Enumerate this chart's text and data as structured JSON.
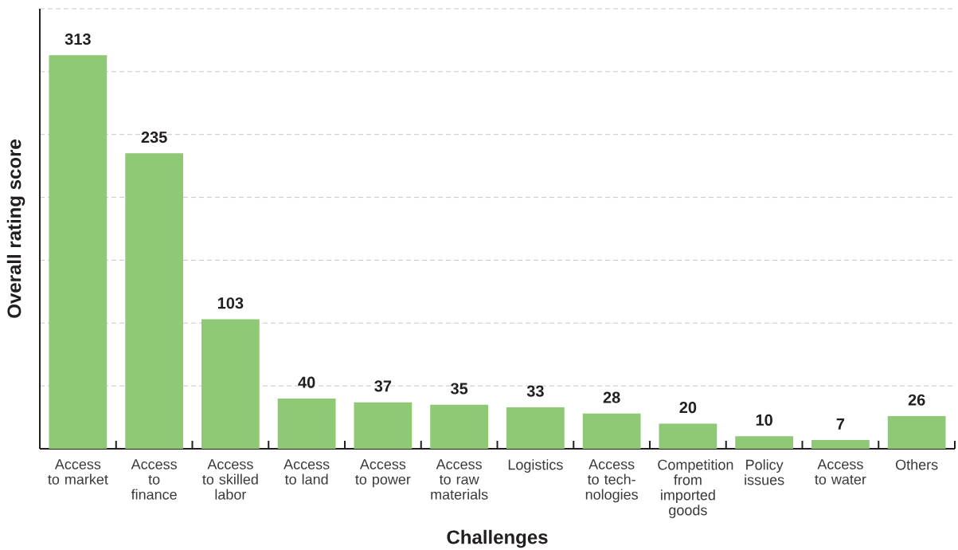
{
  "chart_data": {
    "type": "bar",
    "xlabel": "Challenges",
    "ylabel": "Overall rating score",
    "categories": [
      "Access to market",
      "Access to finance",
      "Access to skilled labor",
      "Access to land",
      "Access to power",
      "Access to raw materials",
      "Logistics",
      "Access to tech-nologies",
      "Competition from imported goods",
      "Policy issues",
      "Access to water",
      "Others"
    ],
    "values": [
      313,
      235,
      103,
      40,
      37,
      35,
      33,
      28,
      20,
      10,
      7,
      26
    ],
    "color": "#8fc975",
    "ylim": [
      0,
      350
    ],
    "yticks": [
      {
        "value": 50,
        "label": null
      },
      {
        "value": 100,
        "label": null
      },
      {
        "value": 150,
        "label": null
      },
      {
        "value": 200,
        "label": null
      },
      {
        "value": 250,
        "label": null
      },
      {
        "value": 300,
        "label": null
      },
      {
        "value": 350,
        "label": null
      }
    ],
    "grid": "y",
    "tick_labels": "x",
    "data_labels": true
  }
}
